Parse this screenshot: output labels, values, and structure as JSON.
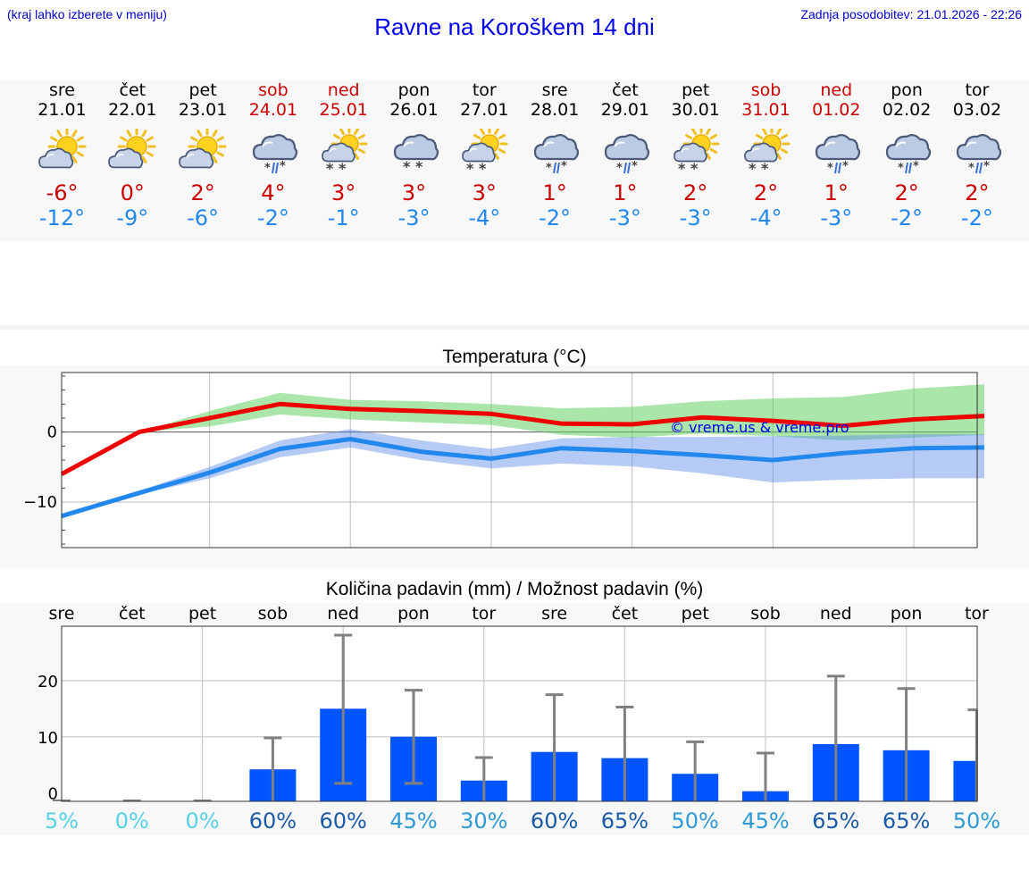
{
  "header": {
    "hint": "(kraj lahko izberete v meniju)",
    "title": "Ravne na Koroškem 14 dni",
    "updated": "Zadnja posodobitev: 21.01.2026 - 22:26"
  },
  "days": [
    {
      "name": "sre",
      "date": "21.01",
      "weekend": false,
      "icon": "sun-cloud-icon",
      "tmax": "-6°",
      "tmin": "-12°"
    },
    {
      "name": "čet",
      "date": "22.01",
      "weekend": false,
      "icon": "sun-cloud-icon",
      "tmax": "0°",
      "tmin": "-9°"
    },
    {
      "name": "pet",
      "date": "23.01",
      "weekend": false,
      "icon": "sun-cloud-icon",
      "tmax": "2°",
      "tmin": "-6°"
    },
    {
      "name": "sob",
      "date": "24.01",
      "weekend": true,
      "icon": "cloud-sleet-icon",
      "tmax": "4°",
      "tmin": "-2°"
    },
    {
      "name": "ned",
      "date": "25.01",
      "weekend": true,
      "icon": "sun-cloud-snow-icon",
      "tmax": "3°",
      "tmin": "-1°"
    },
    {
      "name": "pon",
      "date": "26.01",
      "weekend": false,
      "icon": "cloud-snow-icon",
      "tmax": "3°",
      "tmin": "-3°"
    },
    {
      "name": "tor",
      "date": "27.01",
      "weekend": false,
      "icon": "sun-cloud-snow-icon",
      "tmax": "3°",
      "tmin": "-4°"
    },
    {
      "name": "sre",
      "date": "28.01",
      "weekend": false,
      "icon": "cloud-sleet-icon",
      "tmax": "1°",
      "tmin": "-2°"
    },
    {
      "name": "čet",
      "date": "29.01",
      "weekend": false,
      "icon": "cloud-sleet-icon",
      "tmax": "1°",
      "tmin": "-3°"
    },
    {
      "name": "pet",
      "date": "30.01",
      "weekend": false,
      "icon": "sun-cloud-snow-icon",
      "tmax": "2°",
      "tmin": "-3°"
    },
    {
      "name": "sob",
      "date": "31.01",
      "weekend": true,
      "icon": "sun-cloud-snow-icon",
      "tmax": "2°",
      "tmin": "-4°"
    },
    {
      "name": "ned",
      "date": "01.02",
      "weekend": true,
      "icon": "cloud-sleet-icon",
      "tmax": "1°",
      "tmin": "-3°"
    },
    {
      "name": "pon",
      "date": "02.02",
      "weekend": false,
      "icon": "cloud-sleet-icon",
      "tmax": "2°",
      "tmin": "-2°"
    },
    {
      "name": "tor",
      "date": "03.02",
      "weekend": false,
      "icon": "cloud-sleet-icon",
      "tmax": "2°",
      "tmin": "-2°"
    }
  ],
  "chart_data": [
    {
      "type": "line",
      "title": "Temperatura (°C)",
      "watermark": "© vreme.us & vreme.pro",
      "yticks": [
        0,
        -10
      ],
      "ytick_labels": [
        "0",
        "−10"
      ],
      "ylim": [
        -16.5,
        8.5
      ],
      "x_days": 14,
      "series": [
        {
          "name": "max",
          "color": "#ee0000",
          "x": [
            -0.1,
            1,
            2,
            3,
            4,
            5,
            6,
            7,
            8,
            9,
            10,
            11,
            12,
            13
          ],
          "values": [
            -6,
            0,
            2,
            4,
            3.3,
            3,
            2.6,
            1.2,
            1.1,
            2.1,
            1.6,
            0.9,
            1.8,
            2.3
          ],
          "low": [
            -6,
            0,
            0.8,
            2.5,
            1.8,
            1.4,
            1,
            -0.4,
            -0.8,
            -0.2,
            -0.6,
            -1.2,
            -0.8,
            -0.4
          ],
          "high": [
            -6,
            0,
            3,
            5.6,
            4.6,
            4.4,
            4,
            3.4,
            3.6,
            4.4,
            4.8,
            5,
            6.2,
            6.8
          ]
        },
        {
          "name": "min",
          "color": "#2288ee",
          "x": [
            -0.1,
            1,
            2,
            3,
            4,
            5,
            6,
            7,
            8,
            9,
            10,
            11,
            12,
            13
          ],
          "values": [
            -12,
            -8.7,
            -5.8,
            -2.4,
            -1,
            -2.8,
            -3.8,
            -2.3,
            -2.7,
            -3.3,
            -4,
            -3,
            -2.3,
            -2.2
          ],
          "low": [
            -12,
            -8.9,
            -6.6,
            -3.6,
            -2.2,
            -4,
            -5.2,
            -4.5,
            -4.9,
            -5.9,
            -7.2,
            -6.8,
            -6.6,
            -6.6
          ],
          "high": [
            -12,
            -8.4,
            -5,
            -1.2,
            0.4,
            -1.2,
            -2.4,
            -0.9,
            -0.7,
            -0.7,
            -0.6,
            -0.5,
            -0.3,
            -0.3
          ]
        }
      ]
    },
    {
      "type": "bar",
      "title": "Količina padavin (mm) / Možnost padavin (%)",
      "categories": [
        "sre",
        "čet",
        "pet",
        "sob",
        "ned",
        "pon",
        "tor",
        "sre",
        "čet",
        "pet",
        "sob",
        "ned",
        "pon",
        "tor"
      ],
      "yticks": [
        20,
        10,
        0
      ],
      "ylim": [
        -1.5,
        29.7
      ],
      "values": [
        0,
        0,
        0,
        4.2,
        15,
        10,
        2.2,
        7.3,
        6.2,
        3.4,
        0.3,
        8.7,
        7.6,
        5.7
      ],
      "error_high": [
        0,
        0,
        0,
        9.8,
        28.1,
        18.3,
        6.3,
        17.5,
        15.3,
        9.1,
        7.1,
        20.8,
        18.6,
        14.8
      ],
      "error_low": [
        0,
        0,
        0,
        0,
        1.7,
        1.7,
        0,
        0,
        0,
        0,
        0,
        0,
        0,
        0
      ],
      "probabilities": [
        "5%",
        "0%",
        "0%",
        "60%",
        "60%",
        "45%",
        "30%",
        "60%",
        "65%",
        "50%",
        "45%",
        "65%",
        "65%",
        "50%"
      ],
      "probability_values": [
        5,
        0,
        0,
        60,
        60,
        45,
        30,
        60,
        65,
        50,
        45,
        65,
        65,
        50
      ],
      "bar_color": "#0055ff",
      "error_color": "#808080"
    }
  ]
}
